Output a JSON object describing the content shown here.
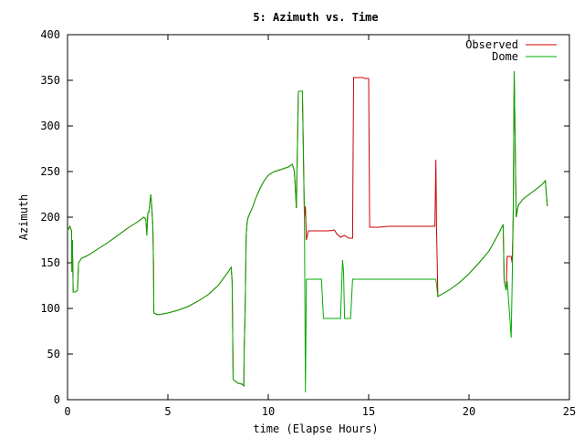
{
  "chart_data": {
    "type": "line",
    "title": "5: Azimuth vs. Time",
    "xlabel": "time (Elapse Hours)",
    "ylabel": "Azimuth",
    "xlim": [
      0,
      25
    ],
    "ylim": [
      0,
      400
    ],
    "x_ticks": [
      "0",
      "5",
      "10",
      "15",
      "20",
      "25"
    ],
    "y_ticks": [
      "0",
      "50",
      "100",
      "150",
      "200",
      "250",
      "300",
      "350",
      "400"
    ],
    "grid": false,
    "legend_position": "top-right",
    "series": [
      {
        "name": "Observed",
        "color": "#cc0000",
        "points": [
          [
            0.0,
            185
          ],
          [
            0.12,
            190
          ],
          [
            0.2,
            185
          ],
          [
            0.22,
            140
          ],
          [
            0.24,
            175
          ],
          [
            0.28,
            118
          ],
          [
            0.4,
            118
          ],
          [
            0.5,
            120
          ],
          [
            0.55,
            150
          ],
          [
            0.7,
            155
          ],
          [
            1.0,
            158
          ],
          [
            1.5,
            165
          ],
          [
            2.0,
            172
          ],
          [
            2.5,
            180
          ],
          [
            3.0,
            188
          ],
          [
            3.5,
            195
          ],
          [
            3.8,
            200
          ],
          [
            3.9,
            198
          ],
          [
            3.95,
            180
          ],
          [
            4.0,
            205
          ],
          [
            4.05,
            205
          ],
          [
            4.1,
            215
          ],
          [
            4.15,
            225
          ],
          [
            4.2,
            210
          ],
          [
            4.25,
            190
          ],
          [
            4.28,
            150
          ],
          [
            4.3,
            95
          ],
          [
            4.5,
            93
          ],
          [
            5.0,
            95
          ],
          [
            5.5,
            98
          ],
          [
            6.0,
            102
          ],
          [
            6.5,
            108
          ],
          [
            7.0,
            115
          ],
          [
            7.5,
            125
          ],
          [
            8.0,
            140
          ],
          [
            8.15,
            145
          ],
          [
            8.2,
            130
          ],
          [
            8.25,
            22
          ],
          [
            8.5,
            18
          ],
          [
            8.7,
            17
          ],
          [
            8.78,
            15
          ],
          [
            8.8,
            55
          ],
          [
            8.85,
            100
          ],
          [
            8.9,
            180
          ],
          [
            8.95,
            195
          ],
          [
            9.0,
            200
          ],
          [
            9.2,
            210
          ],
          [
            9.4,
            222
          ],
          [
            9.6,
            232
          ],
          [
            9.8,
            240
          ],
          [
            10.0,
            246
          ],
          [
            10.3,
            250
          ],
          [
            10.6,
            252
          ],
          [
            11.0,
            255
          ],
          [
            11.2,
            258
          ],
          [
            11.3,
            250
          ],
          [
            11.4,
            210
          ],
          [
            11.5,
            338
          ],
          [
            11.7,
            338
          ],
          [
            11.8,
            200
          ],
          [
            11.85,
            212
          ],
          [
            11.9,
            175
          ],
          [
            12.0,
            185
          ],
          [
            12.5,
            185
          ],
          [
            13.0,
            185
          ],
          [
            13.3,
            186
          ],
          [
            13.4,
            182
          ],
          [
            13.6,
            178
          ],
          [
            13.8,
            180
          ],
          [
            14.0,
            177
          ],
          [
            14.2,
            177
          ],
          [
            14.25,
            353
          ],
          [
            14.7,
            353
          ],
          [
            14.8,
            352
          ],
          [
            15.0,
            352
          ],
          [
            15.05,
            189
          ],
          [
            15.5,
            189
          ],
          [
            16.0,
            190
          ],
          [
            17.0,
            190
          ],
          [
            18.0,
            190
          ],
          [
            18.3,
            190
          ],
          [
            18.35,
            263
          ],
          [
            18.38,
            190
          ],
          [
            18.45,
            113
          ],
          [
            18.6,
            115
          ],
          [
            19.0,
            120
          ],
          [
            19.5,
            128
          ],
          [
            20.0,
            138
          ],
          [
            20.5,
            150
          ],
          [
            21.0,
            163
          ],
          [
            21.3,
            175
          ],
          [
            21.5,
            183
          ],
          [
            21.7,
            192
          ],
          [
            21.75,
            130
          ],
          [
            21.85,
            120
          ],
          [
            21.9,
            157
          ],
          [
            22.0,
            157
          ],
          [
            22.1,
            157
          ],
          [
            22.15,
            150
          ],
          [
            22.2,
            200
          ],
          [
            22.25,
            360
          ],
          [
            22.35,
            200
          ],
          [
            22.45,
            213
          ],
          [
            22.7,
            220
          ],
          [
            23.0,
            225
          ],
          [
            23.3,
            230
          ],
          [
            23.6,
            235
          ],
          [
            23.8,
            240
          ],
          [
            23.9,
            212
          ]
        ]
      },
      {
        "name": "Dome",
        "color": "#00aa00",
        "points": [
          [
            0.0,
            185
          ],
          [
            0.12,
            190
          ],
          [
            0.2,
            185
          ],
          [
            0.22,
            140
          ],
          [
            0.24,
            175
          ],
          [
            0.28,
            118
          ],
          [
            0.4,
            118
          ],
          [
            0.5,
            120
          ],
          [
            0.55,
            150
          ],
          [
            0.7,
            155
          ],
          [
            1.0,
            158
          ],
          [
            1.5,
            165
          ],
          [
            2.0,
            172
          ],
          [
            2.5,
            180
          ],
          [
            3.0,
            188
          ],
          [
            3.5,
            195
          ],
          [
            3.8,
            200
          ],
          [
            3.9,
            198
          ],
          [
            3.95,
            180
          ],
          [
            4.0,
            205
          ],
          [
            4.05,
            205
          ],
          [
            4.1,
            215
          ],
          [
            4.15,
            225
          ],
          [
            4.2,
            210
          ],
          [
            4.25,
            190
          ],
          [
            4.28,
            150
          ],
          [
            4.3,
            95
          ],
          [
            4.5,
            93
          ],
          [
            5.0,
            95
          ],
          [
            5.5,
            98
          ],
          [
            6.0,
            102
          ],
          [
            6.5,
            108
          ],
          [
            7.0,
            115
          ],
          [
            7.5,
            125
          ],
          [
            8.0,
            140
          ],
          [
            8.15,
            145
          ],
          [
            8.2,
            130
          ],
          [
            8.25,
            22
          ],
          [
            8.5,
            18
          ],
          [
            8.7,
            17
          ],
          [
            8.78,
            15
          ],
          [
            8.8,
            55
          ],
          [
            8.85,
            100
          ],
          [
            8.9,
            180
          ],
          [
            8.95,
            195
          ],
          [
            9.0,
            200
          ],
          [
            9.2,
            210
          ],
          [
            9.4,
            222
          ],
          [
            9.6,
            232
          ],
          [
            9.8,
            240
          ],
          [
            10.0,
            246
          ],
          [
            10.3,
            250
          ],
          [
            10.6,
            252
          ],
          [
            11.0,
            255
          ],
          [
            11.2,
            258
          ],
          [
            11.3,
            250
          ],
          [
            11.4,
            210
          ],
          [
            11.5,
            338
          ],
          [
            11.7,
            338
          ],
          [
            11.8,
            200
          ],
          [
            11.85,
            8
          ],
          [
            11.9,
            132
          ],
          [
            12.0,
            132
          ],
          [
            12.5,
            132
          ],
          [
            12.65,
            132
          ],
          [
            12.75,
            89
          ],
          [
            13.0,
            89
          ],
          [
            13.5,
            89
          ],
          [
            13.6,
            89
          ],
          [
            13.7,
            153
          ],
          [
            13.75,
            140
          ],
          [
            13.8,
            89
          ],
          [
            13.9,
            89
          ],
          [
            14.0,
            89
          ],
          [
            14.1,
            89
          ],
          [
            14.2,
            132
          ],
          [
            15.0,
            132
          ],
          [
            16.0,
            132
          ],
          [
            17.0,
            132
          ],
          [
            18.0,
            132
          ],
          [
            18.3,
            132
          ],
          [
            18.35,
            132
          ],
          [
            18.45,
            113
          ],
          [
            18.6,
            115
          ],
          [
            19.0,
            120
          ],
          [
            19.5,
            128
          ],
          [
            20.0,
            138
          ],
          [
            20.5,
            150
          ],
          [
            21.0,
            163
          ],
          [
            21.3,
            175
          ],
          [
            21.5,
            183
          ],
          [
            21.7,
            192
          ],
          [
            21.75,
            130
          ],
          [
            21.85,
            120
          ],
          [
            21.9,
            130
          ],
          [
            22.0,
            100
          ],
          [
            22.1,
            68
          ],
          [
            22.15,
            130
          ],
          [
            22.2,
            200
          ],
          [
            22.25,
            360
          ],
          [
            22.35,
            200
          ],
          [
            22.45,
            213
          ],
          [
            22.7,
            220
          ],
          [
            23.0,
            225
          ],
          [
            23.3,
            230
          ],
          [
            23.6,
            235
          ],
          [
            23.8,
            240
          ],
          [
            23.9,
            212
          ]
        ]
      }
    ]
  }
}
